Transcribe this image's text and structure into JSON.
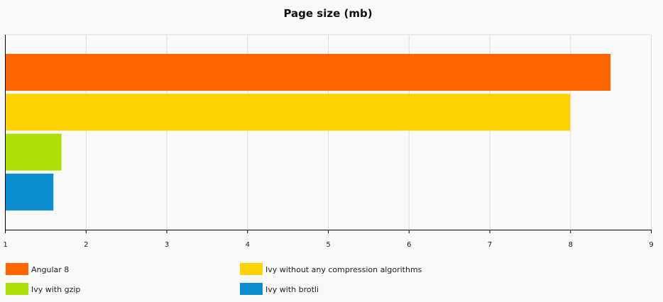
{
  "chart_data": {
    "type": "bar",
    "orientation": "horizontal",
    "title": "Page size (mb)",
    "xlabel": "",
    "ylabel": "",
    "xlim": [
      1,
      9
    ],
    "xticks": [
      1,
      2,
      3,
      4,
      5,
      6,
      7,
      8,
      9
    ],
    "grid": true,
    "legend_position": "bottom",
    "series": [
      {
        "name": "Angular 8",
        "value": 8.5,
        "color": "#ff6600"
      },
      {
        "name": "Ivy without any compression algorithms",
        "value": 8.0,
        "color": "#fcd202"
      },
      {
        "name": "Ivy with gzip",
        "value": 1.7,
        "color": "#b0de09"
      },
      {
        "name": "Ivy with brotli",
        "value": 1.6,
        "color": "#0d8ecf"
      }
    ]
  }
}
